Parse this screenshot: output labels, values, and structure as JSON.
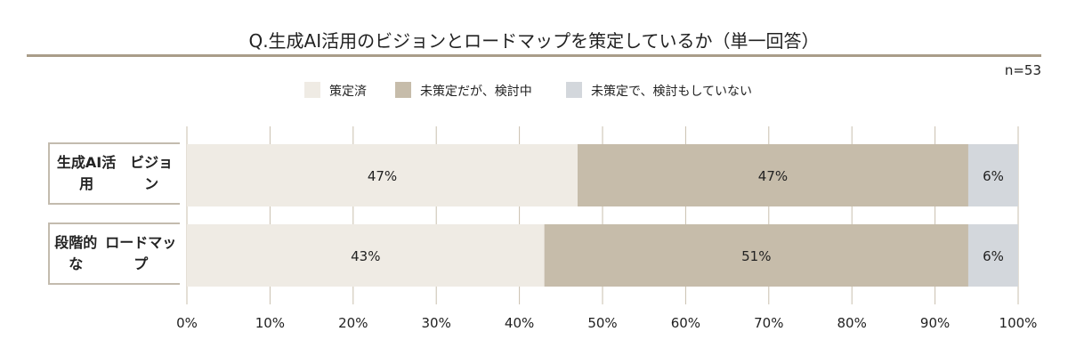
{
  "chart_data": {
    "type": "bar",
    "orientation": "horizontal-stacked",
    "title": "Q.生成AI活用のビジョンとロードマップを策定しているか（単一回答）",
    "note": "n=53",
    "categories": [
      [
        "生成AI活用",
        "ビジョン"
      ],
      [
        "段階的な",
        "ロードマップ"
      ]
    ],
    "series": [
      {
        "name": "策定済",
        "color": "#efebe4",
        "values": [
          47,
          43
        ]
      },
      {
        "name": "未策定だが、検討中",
        "color": "#c6bcaa",
        "values": [
          47,
          51
        ]
      },
      {
        "name": "未策定で、検討もしていない",
        "color": "#d3d7dc",
        "values": [
          6,
          6
        ]
      }
    ],
    "xlim": [
      0,
      100
    ],
    "xticks": [
      "0%",
      "10%",
      "20%",
      "30%",
      "40%",
      "50%",
      "60%",
      "70%",
      "80%",
      "90%",
      "100%"
    ],
    "grid": true,
    "legend": "top-center",
    "gridColor": "#c9bfae"
  }
}
